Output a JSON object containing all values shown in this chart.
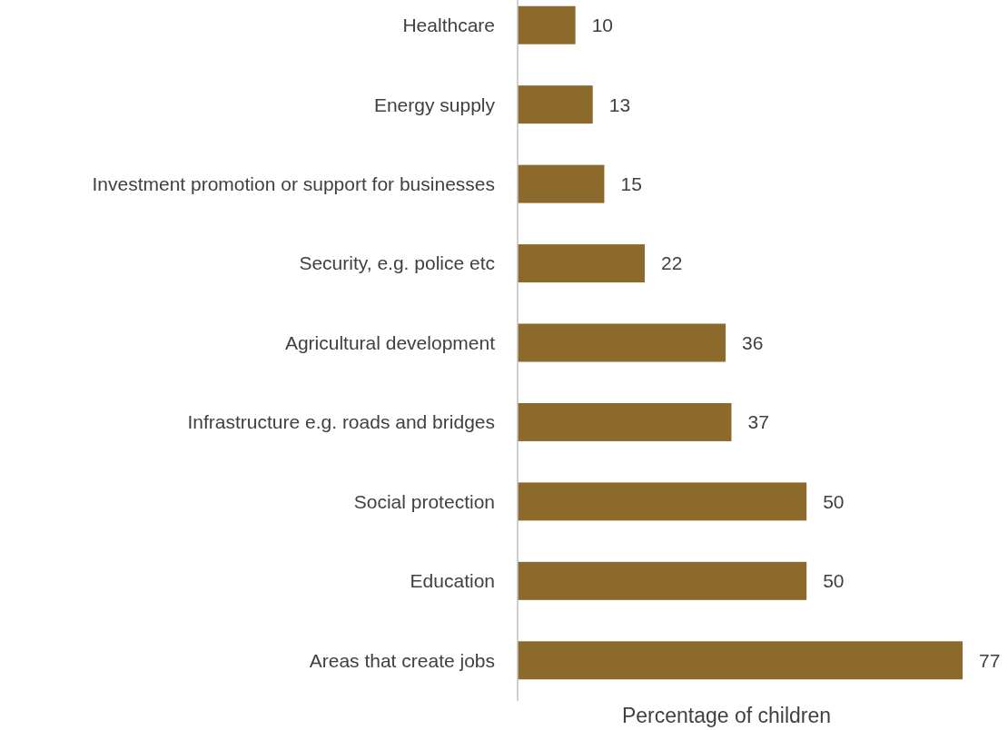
{
  "chart_data": {
    "type": "bar",
    "orientation": "horizontal",
    "xlabel": "Percentage of children",
    "categories": [
      "Healthcare",
      "Energy supply",
      "Investment promotion or support for businesses",
      "Security, e.g. police etc",
      "Agricultural development",
      "Infrastructure e.g. roads and bridges",
      "Social protection",
      "Education",
      "Areas that create jobs"
    ],
    "values": [
      10,
      13,
      15,
      22,
      36,
      37,
      50,
      50,
      77
    ],
    "color": "#8b6a2c",
    "xlim": [
      0,
      77
    ],
    "tick_labels": "y",
    "data_labels": true
  }
}
